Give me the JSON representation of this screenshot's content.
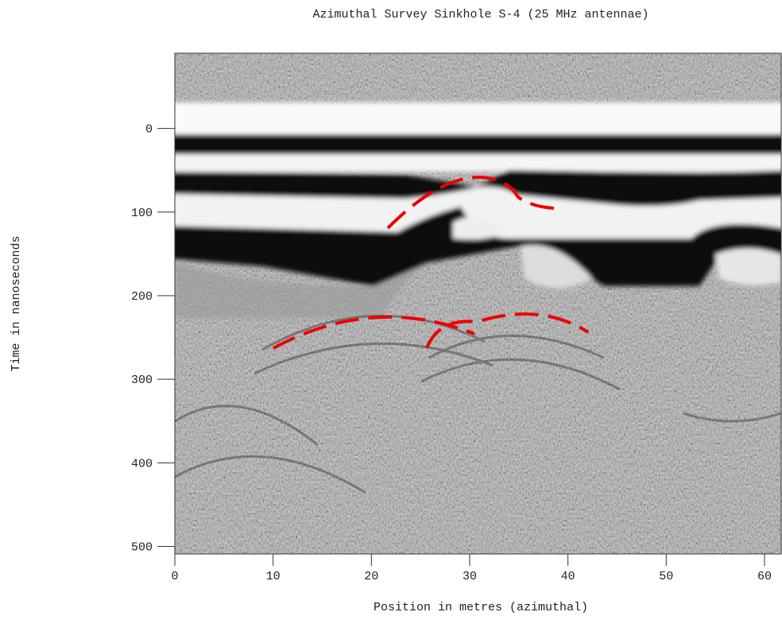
{
  "chart_data": {
    "type": "radargram",
    "title": "Azimuthal Survey Sinkhole S-4 (25 MHz antennae)",
    "xlabel": "Position in metres (azimuthal)",
    "ylabel": "Time in nanoseconds",
    "xlim": [
      0,
      61.7
    ],
    "xticks": [
      0,
      10,
      20,
      30,
      40,
      50,
      60
    ],
    "ylim": [
      -90,
      509
    ],
    "yticks": [
      0,
      100,
      200,
      300,
      400,
      500
    ],
    "y_inverted": true
  }
}
